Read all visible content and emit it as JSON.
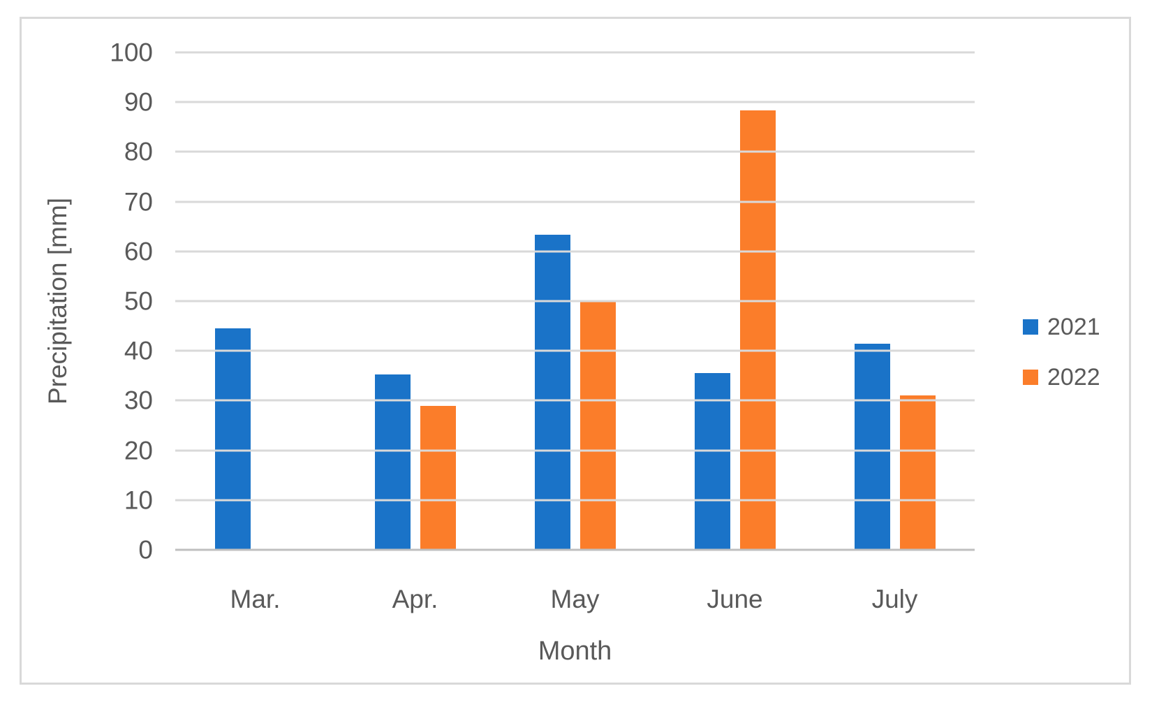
{
  "chart_data": {
    "type": "bar",
    "title": "",
    "xlabel": "Month",
    "ylabel": "Precipitation [mm]",
    "categories": [
      "Mar.",
      "Apr.",
      "May",
      "June",
      "July"
    ],
    "series": [
      {
        "name": "2021",
        "color": "#1a73c8",
        "values": [
          44.5,
          35.2,
          63.3,
          35.5,
          41.5
        ]
      },
      {
        "name": "2022",
        "color": "#fb7d2a",
        "values": [
          null,
          29,
          50,
          88.3,
          31
        ]
      }
    ],
    "ylim": [
      0,
      100
    ],
    "yticks": [
      0,
      10,
      20,
      30,
      40,
      50,
      60,
      70,
      80,
      90,
      100
    ],
    "grid": true,
    "legend_position": "right",
    "bar_missing_policy": "empty-slot"
  },
  "colors": {
    "gridline": "#d9d9d9",
    "zero_line": "#bfbfbf",
    "frame_border": "#d9d9d9",
    "text": "#595959",
    "background": "#ffffff"
  }
}
